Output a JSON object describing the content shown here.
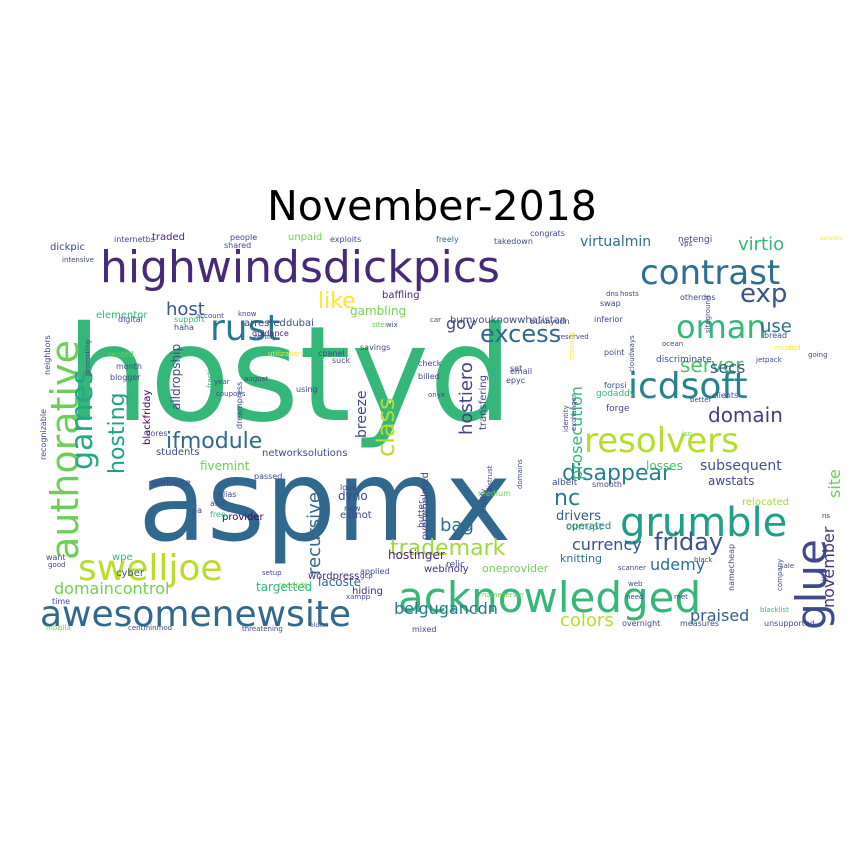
{
  "title": "November-2018",
  "words": [
    {
      "t": "hostyd",
      "c": "#35b779",
      "r": 0
    },
    {
      "t": "aspmx",
      "c": "#31688e",
      "r": 0
    },
    {
      "t": "highwindsdickpics",
      "c": "#482878",
      "r": 0
    },
    {
      "t": "acknowledged",
      "c": "#35b779",
      "r": 0
    },
    {
      "t": "awesomenewsite",
      "c": "#31688e",
      "r": 0
    },
    {
      "t": "authorative",
      "c": "#6ece58",
      "r": 270
    },
    {
      "t": "grumble",
      "c": "#1f9e89",
      "r": 0
    },
    {
      "t": "icdsoft",
      "c": "#26828e",
      "r": 0
    },
    {
      "t": "resolvers",
      "c": "#b5de2b",
      "r": 0
    },
    {
      "t": "contrast",
      "c": "#2e6f8e",
      "r": 0
    },
    {
      "t": "swelljoe",
      "c": "#b8de29",
      "r": 0
    },
    {
      "t": "glue",
      "c": "#3e4a89",
      "r": 270
    },
    {
      "t": "oman",
      "c": "#35b779",
      "r": 0
    },
    {
      "t": "games",
      "c": "#22a884",
      "r": 270
    },
    {
      "t": "rust",
      "c": "#2a788e",
      "r": 0
    },
    {
      "t": "excess",
      "c": "#31688e",
      "r": 0
    },
    {
      "t": "friday",
      "c": "#3b528b",
      "r": 0
    },
    {
      "t": "ifmodule",
      "c": "#31688e",
      "r": 0
    },
    {
      "t": "disappear",
      "c": "#26828e",
      "r": 0
    },
    {
      "t": "domain",
      "c": "#433e85",
      "r": 0
    },
    {
      "t": "trademark",
      "c": "#a0da39",
      "r": 0
    },
    {
      "t": "class",
      "c": "#b5de2b",
      "r": 270
    },
    {
      "t": "hosting",
      "c": "#1fa187",
      "r": 270
    },
    {
      "t": "virtio",
      "c": "#35b779",
      "r": 0
    },
    {
      "t": "currency",
      "c": "#3b528b",
      "r": 0
    },
    {
      "t": "nc",
      "c": "#2a788e",
      "r": 0
    },
    {
      "t": "exp",
      "c": "#3b528b",
      "r": 0
    },
    {
      "t": "host",
      "c": "#39568c",
      "r": 0
    },
    {
      "t": "server",
      "c": "#4ac16d",
      "r": 0
    },
    {
      "t": "like",
      "c": "#fde725",
      "r": 0
    },
    {
      "t": "use",
      "c": "#2c728e",
      "r": 0
    },
    {
      "t": "domaincontrol",
      "c": "#75d054",
      "r": 0
    },
    {
      "t": "belgugancdn",
      "c": "#2a788e",
      "r": 0
    },
    {
      "t": "praised",
      "c": "#355f8d",
      "r": 0
    },
    {
      "t": "udemy",
      "c": "#2d708e",
      "r": 0
    },
    {
      "t": "recursive",
      "c": "#31688e",
      "r": 270
    },
    {
      "t": "hostiero",
      "c": "#414487",
      "r": 270
    },
    {
      "t": "november",
      "c": "#46327e",
      "r": 270
    },
    {
      "t": "site",
      "c": "#6ece58",
      "r": 270
    },
    {
      "t": "colors",
      "c": "#b5de2b",
      "r": 0
    },
    {
      "t": "bag",
      "c": "#2d708e",
      "r": 0
    },
    {
      "t": "gov",
      "c": "#3e4a89",
      "r": 0
    },
    {
      "t": "secs",
      "c": "#39568c",
      "r": 0
    },
    {
      "t": "drivers",
      "c": "#38598c",
      "r": 0
    },
    {
      "t": "subsequent",
      "c": "#3b528b",
      "r": 0
    },
    {
      "t": "losses",
      "c": "#4ac16d",
      "r": 0
    },
    {
      "t": "currupt",
      "c": "#4ac16d",
      "r": 0
    },
    {
      "t": "prosecution",
      "c": "#35b779",
      "r": 270
    },
    {
      "t": "breeze",
      "c": "#3e4a89",
      "r": 270
    },
    {
      "t": "gambling",
      "c": "#7ad151",
      "r": 0
    },
    {
      "t": "virtualmin",
      "c": "#2e6f8e",
      "r": 0
    },
    {
      "t": "dickpic",
      "c": "#3e4a89",
      "r": 0
    },
    {
      "t": "traded",
      "c": "#482878",
      "r": 0
    },
    {
      "t": "unpaid",
      "c": "#6ece58",
      "r": 0
    },
    {
      "t": "awstats",
      "c": "#3e4a89",
      "r": 0
    },
    {
      "t": "relocated",
      "c": "#a5db36",
      "r": 0
    },
    {
      "t": "operated",
      "c": "#2a788e",
      "r": 0
    },
    {
      "t": "knitting",
      "c": "#2d708e",
      "r": 0
    },
    {
      "t": "hostinger",
      "c": "#482878",
      "r": 0
    },
    {
      "t": "lacoste",
      "c": "#31688e",
      "r": 0
    },
    {
      "t": "targetted",
      "c": "#35b779",
      "r": 0
    },
    {
      "t": "webinoly",
      "c": "#46327e",
      "r": 0
    },
    {
      "t": "oneprovider",
      "c": "#6ece58",
      "r": 0
    },
    {
      "t": "dyno",
      "c": "#3e4a89",
      "r": 0
    },
    {
      "t": "estnot",
      "c": "#3e4a89",
      "r": 0
    },
    {
      "t": "hiding",
      "c": "#482878",
      "r": 0
    },
    {
      "t": "transfering",
      "c": "#3e4a89",
      "r": 270
    },
    {
      "t": "bumyouknowwhatistan",
      "c": "#3e4a89",
      "r": 0
    },
    {
      "t": "arrested",
      "c": "#3e4a89",
      "r": 0
    },
    {
      "t": "dubai",
      "c": "#3e4a89",
      "r": 0
    },
    {
      "t": "alldropship",
      "c": "#3e4a89",
      "r": 270
    },
    {
      "t": "blackfriday",
      "c": "#440154",
      "r": 270
    },
    {
      "t": "fivemint",
      "c": "#6ece58",
      "r": 0
    },
    {
      "t": "networksolutions",
      "c": "#3e4a89",
      "r": 0
    },
    {
      "t": "elementor",
      "c": "#35b779",
      "r": 0
    },
    {
      "t": "baffling",
      "c": "#482878",
      "r": 0
    },
    {
      "t": "overwhelmed",
      "c": "#3e4a89",
      "r": 270
    },
    {
      "t": "wpe",
      "c": "#35b779",
      "r": 0
    },
    {
      "t": "cyber",
      "c": "#3e4a89",
      "r": 0
    },
    {
      "t": "wordpress",
      "c": "#482878",
      "r": 0
    },
    {
      "t": "provider",
      "c": "#440154",
      "r": 0
    },
    {
      "t": "website",
      "c": "#3e4a89",
      "r": 0
    },
    {
      "t": "students",
      "c": "#3e4a89",
      "r": 0
    },
    {
      "t": "exploits",
      "c": "#3e4a89",
      "r": 0
    },
    {
      "t": "freely",
      "c": "#31688e",
      "r": 0
    },
    {
      "t": "takedown",
      "c": "#3e4a89",
      "r": 0
    },
    {
      "t": "netengi",
      "c": "#3e4a89",
      "r": 0
    },
    {
      "t": "otherdns",
      "c": "#3e4a89",
      "r": 0
    },
    {
      "t": "albeit",
      "c": "#3e4a89",
      "r": 0
    },
    {
      "t": "butter",
      "c": "#3e4a89",
      "r": 270
    },
    {
      "t": "godaddy",
      "c": "#35b779",
      "r": 0
    },
    {
      "t": "forge",
      "c": "#3e4a89",
      "r": 0
    },
    {
      "t": "bread",
      "c": "#3e4a89",
      "r": 0
    },
    {
      "t": "smooth",
      "c": "#3e4a89",
      "r": 0
    },
    {
      "t": "medium",
      "c": "#6ece58",
      "r": 0
    },
    {
      "t": "scanner",
      "c": "#3e4a89",
      "r": 0
    },
    {
      "t": "nameserver",
      "c": "#6ece58",
      "r": 0
    },
    {
      "t": "overnight",
      "c": "#3e4a89",
      "r": 0
    },
    {
      "t": "measures",
      "c": "#3e4a89",
      "r": 0
    },
    {
      "t": "blacklist",
      "c": "#35b779",
      "r": 0
    },
    {
      "t": "mozilla",
      "c": "#6ece58",
      "r": 0
    },
    {
      "t": "centminmod",
      "c": "#3e4a89",
      "r": 0
    },
    {
      "t": "threatening",
      "c": "#3e4a89",
      "r": 0
    },
    {
      "t": "oldest",
      "c": "#3e4a89",
      "r": 0
    },
    {
      "t": "mixed",
      "c": "#3e4a89",
      "r": 0
    },
    {
      "t": "xampp",
      "c": "#3e4a89",
      "r": 0
    },
    {
      "t": "record",
      "c": "#6ece58",
      "r": 0
    },
    {
      "t": "month",
      "c": "#3e4a89",
      "r": 0
    },
    {
      "t": "blogger",
      "c": "#3e4a89",
      "r": 0
    },
    {
      "t": "digital",
      "c": "#3e4a89",
      "r": 0
    },
    {
      "t": "support",
      "c": "#35b779",
      "r": 0
    },
    {
      "t": "haha",
      "c": "#3e4a89",
      "r": 0
    },
    {
      "t": "guidance",
      "c": "#482878",
      "r": 0
    },
    {
      "t": "whiny",
      "c": "#3e4a89",
      "r": 0
    },
    {
      "t": "cpanel",
      "c": "#3e4a89",
      "r": 0
    },
    {
      "t": "suck",
      "c": "#3e4a89",
      "r": 0
    },
    {
      "t": "savings",
      "c": "#3e4a89",
      "r": 0
    },
    {
      "t": "check",
      "c": "#3e4a89",
      "r": 0
    },
    {
      "t": "billed",
      "c": "#3e4a89",
      "r": 0
    },
    {
      "t": "onyx",
      "c": "#3e4a89",
      "r": 0
    },
    {
      "t": "email",
      "c": "#3e4a89",
      "r": 0
    },
    {
      "t": "epyc",
      "c": "#3e4a89",
      "r": 0
    },
    {
      "t": "set",
      "c": "#3e4a89",
      "r": 0
    },
    {
      "t": "point",
      "c": "#3e4a89",
      "r": 0
    },
    {
      "t": "discriminate",
      "c": "#3e4a89",
      "r": 0
    },
    {
      "t": "jetpack",
      "c": "#3e4a89",
      "r": 0
    },
    {
      "t": "forpsi",
      "c": "#3e4a89",
      "r": 0
    },
    {
      "t": "better",
      "c": "#3e4a89",
      "r": 0
    },
    {
      "t": "clients",
      "c": "#3e4a89",
      "r": 0
    },
    {
      "t": "black",
      "c": "#3e4a89",
      "r": 0
    },
    {
      "t": "sale",
      "c": "#3e4a89",
      "r": 0
    },
    {
      "t": "web",
      "c": "#3e4a89",
      "r": 0
    },
    {
      "t": "need",
      "c": "#3e4a89",
      "r": 0
    },
    {
      "t": "met",
      "c": "#3e4a89",
      "r": 0
    },
    {
      "t": "unsupported",
      "c": "#3e4a89",
      "r": 0
    },
    {
      "t": "ns",
      "c": "#3e4a89",
      "r": 0
    },
    {
      "t": "iso",
      "c": "#6ece58",
      "r": 0
    },
    {
      "t": "internetbs",
      "c": "#3e4a89",
      "r": 0
    },
    {
      "t": "people",
      "c": "#3e4a89",
      "r": 0
    },
    {
      "t": "shared",
      "c": "#3e4a89",
      "r": 0
    },
    {
      "t": "intensive",
      "c": "#3e4a89",
      "r": 0
    },
    {
      "t": "congrats",
      "c": "#3e4a89",
      "r": 0
    },
    {
      "t": "vps",
      "c": "#3e4a89",
      "r": 0
    },
    {
      "t": "servers",
      "c": "#fde725",
      "r": 0
    },
    {
      "t": "know",
      "c": "#3e4a89",
      "r": 0
    },
    {
      "t": "account",
      "c": "#3e4a89",
      "r": 0
    },
    {
      "t": "wix",
      "c": "#3e4a89",
      "r": 0
    },
    {
      "t": "sites",
      "c": "#6ece58",
      "r": 0
    },
    {
      "t": "car",
      "c": "#3e4a89",
      "r": 0
    },
    {
      "t": "swap",
      "c": "#3e4a89",
      "r": 0
    },
    {
      "t": "dns",
      "c": "#3e4a89",
      "r": 0
    },
    {
      "t": "hosts",
      "c": "#3e4a89",
      "r": 0
    },
    {
      "t": "inferior",
      "c": "#3e4a89",
      "r": 0
    },
    {
      "t": "reserved",
      "c": "#3e4a89",
      "r": 0
    },
    {
      "t": "bunnycdn",
      "c": "#3e4a89",
      "r": 0
    },
    {
      "t": "ocean",
      "c": "#3e4a89",
      "r": 0
    },
    {
      "t": "going",
      "c": "#3e4a89",
      "r": 0
    },
    {
      "t": "minded",
      "c": "#fde725",
      "r": 0
    },
    {
      "t": "utilization",
      "c": "#fde725",
      "r": 0
    },
    {
      "t": "and",
      "c": "#3e4a89",
      "r": 0
    },
    {
      "t": "alias",
      "c": "#3e4a89",
      "r": 0
    },
    {
      "t": "free",
      "c": "#35b779",
      "r": 0
    },
    {
      "t": "pa",
      "c": "#3e4a89",
      "r": 0
    },
    {
      "t": "passed",
      "c": "#3e4a89",
      "r": 0
    },
    {
      "t": "look",
      "c": "#3e4a89",
      "r": 0
    },
    {
      "t": "new",
      "c": "#3e4a89",
      "r": 0
    },
    {
      "t": "setup",
      "c": "#3e4a89",
      "r": 0
    },
    {
      "t": "records",
      "c": "#6ece58",
      "r": 0
    },
    {
      "t": "gcp",
      "c": "#3e4a89",
      "r": 0
    },
    {
      "t": "relic",
      "c": "#3e4a89",
      "r": 0
    },
    {
      "t": "applied",
      "c": "#3e4a89",
      "r": 0
    },
    {
      "t": "using",
      "c": "#3e4a89",
      "r": 0
    },
    {
      "t": "year",
      "c": "#3e4a89",
      "r": 0
    },
    {
      "t": "coupons",
      "c": "#3e4a89",
      "r": 0
    },
    {
      "t": "august",
      "c": "#3e4a89",
      "r": 0
    },
    {
      "t": "cores",
      "c": "#3e4a89",
      "r": 0
    },
    {
      "t": "want",
      "c": "#3e4a89",
      "r": 0
    },
    {
      "t": "good",
      "c": "#3e4a89",
      "r": 0
    },
    {
      "t": "time",
      "c": "#3e4a89",
      "r": 0
    },
    {
      "t": "neighbors",
      "c": "#3e4a89",
      "r": 270
    },
    {
      "t": "recognizable",
      "c": "#3e4a89",
      "r": 270
    },
    {
      "t": "fraction",
      "c": "#35b779",
      "r": 270
    },
    {
      "t": "dreampress",
      "c": "#3e4a89",
      "r": 270
    },
    {
      "t": "distrust",
      "c": "#3e4a89",
      "r": 270
    },
    {
      "t": "exchanger",
      "c": "#3e4a89",
      "r": 270
    },
    {
      "t": "identity",
      "c": "#3e4a89",
      "r": 270
    },
    {
      "t": "domains",
      "c": "#3e4a89",
      "r": 270
    },
    {
      "t": "justify",
      "c": "#3e4a89",
      "r": 270
    },
    {
      "t": "monday",
      "c": "#fde725",
      "r": 270
    },
    {
      "t": "cloudways",
      "c": "#3e4a89",
      "r": 270
    },
    {
      "t": "siteground",
      "c": "#3e4a89",
      "r": 270
    },
    {
      "t": "namecheap",
      "c": "#3e4a89",
      "r": 270
    },
    {
      "t": "company",
      "c": "#3e4a89",
      "r": 270
    },
    {
      "t": "yr",
      "c": "#3e4a89",
      "r": 270
    },
    {
      "t": "promoting",
      "c": "#3e4a89",
      "r": 270
    },
    {
      "t": "service",
      "c": "#3e4a89",
      "r": 270
    }
  ]
}
